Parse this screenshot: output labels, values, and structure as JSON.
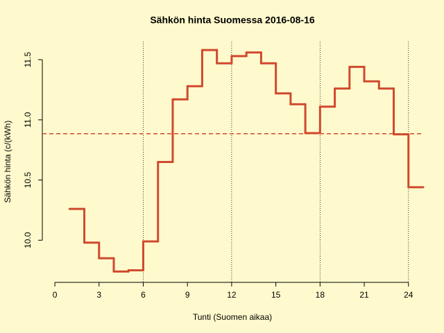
{
  "chart_data": {
    "type": "step",
    "title": "Sähkön hinta Suomessa 2016-08-16",
    "x_label": "Tunti (Suomen aikaa)",
    "y_label": "Sähkön hinta (c/(kWh)",
    "x": [
      1,
      2,
      3,
      4,
      5,
      6,
      7,
      8,
      9,
      10,
      11,
      12,
      13,
      14,
      15,
      16,
      17,
      18,
      19,
      20,
      21,
      22,
      23,
      24
    ],
    "series": [
      {
        "color": "#d0492e",
        "values": [
          10.26,
          9.98,
          9.85,
          9.74,
          9.75,
          9.99,
          10.65,
          11.17,
          11.28,
          11.58,
          11.47,
          11.53,
          11.56,
          11.47,
          11.22,
          11.13,
          10.89,
          11.11,
          11.26,
          11.44,
          11.32,
          11.26,
          10.88,
          10.44
        ]
      }
    ],
    "mean_line": {
      "value": 10.885,
      "color": "#d0492e"
    },
    "vlines": [
      6,
      12,
      18,
      24
    ],
    "xlim": [
      -0.85,
      25
    ],
    "ylim": [
      9.65,
      11.65
    ],
    "xticks": [
      0,
      3,
      6,
      9,
      12,
      15,
      18,
      21,
      24
    ],
    "yticks": [
      {
        "value": 10,
        "label": "10.0"
      },
      {
        "value": 10.5,
        "label": "10.5"
      },
      {
        "value": 11,
        "label": "11.0"
      },
      {
        "value": 11.5,
        "label": "11.5"
      }
    ],
    "background": "#fffacd"
  }
}
